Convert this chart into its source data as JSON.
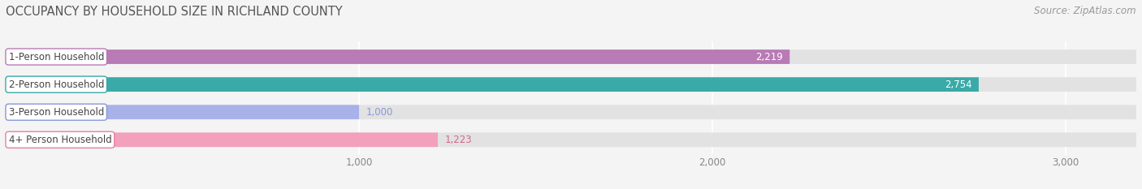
{
  "title": "OCCUPANCY BY HOUSEHOLD SIZE IN RICHLAND COUNTY",
  "source": "Source: ZipAtlas.com",
  "categories": [
    "1-Person Household",
    "2-Person Household",
    "3-Person Household",
    "4+ Person Household"
  ],
  "values": [
    2219,
    2754,
    1000,
    1223
  ],
  "bar_colors": [
    "#b87bb5",
    "#39aaa8",
    "#a8b2e8",
    "#f2a0bc"
  ],
  "label_border_colors": [
    "#b87bb5",
    "#39aaa8",
    "#8898d8",
    "#e8809c"
  ],
  "value_colors": [
    "white",
    "white",
    "#8898d8",
    "#d06888"
  ],
  "xlim_max": 3200,
  "xticks": [
    1000,
    2000,
    3000
  ],
  "xtick_labels": [
    "1,000",
    "2,000",
    "3,000"
  ],
  "background_color": "#f4f4f4",
  "bar_bg_color": "#e2e2e2",
  "grid_color": "#ffffff",
  "title_color": "#555555",
  "source_color": "#999999",
  "label_text_color": "#444444",
  "title_fontsize": 10.5,
  "source_fontsize": 8.5,
  "tick_fontsize": 8.5,
  "label_fontsize": 8.5,
  "value_fontsize": 8.5
}
